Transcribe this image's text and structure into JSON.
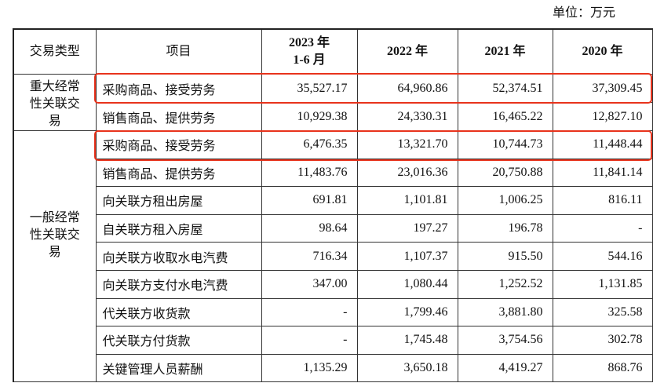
{
  "unit_label": "单位：万元",
  "headers": [
    "交易类型",
    "项目",
    "2023 年\n1-6 月",
    "2022 年",
    "2021 年",
    "2020 年"
  ],
  "header_2023_line1": "2023 年",
  "header_2023_line2": "1-6 月",
  "highlight_color": "#e8331c",
  "groups": [
    {
      "type": "重大经常性关联交易",
      "rows": [
        {
          "item": "采购商品、接受劳务",
          "values": [
            "35,527.17",
            "64,960.86",
            "52,374.51",
            "37,309.45"
          ],
          "highlighted": true
        },
        {
          "item": "销售商品、提供劳务",
          "values": [
            "10,929.38",
            "24,330.31",
            "16,465.22",
            "12,827.10"
          ],
          "highlighted": false
        }
      ]
    },
    {
      "type": "一般经常性关联交易",
      "rows": [
        {
          "item": "采购商品、接受劳务",
          "values": [
            "6,476.35",
            "13,321.70",
            "10,744.73",
            "11,448.44"
          ],
          "highlighted": true
        },
        {
          "item": "销售商品、提供劳务",
          "values": [
            "11,483.76",
            "23,016.36",
            "20,750.88",
            "11,841.14"
          ],
          "highlighted": false
        },
        {
          "item": "向关联方租出房屋",
          "values": [
            "691.81",
            "1,101.81",
            "1,006.25",
            "816.11"
          ],
          "highlighted": false
        },
        {
          "item": "自关联方租入房屋",
          "values": [
            "98.64",
            "197.27",
            "196.78",
            "-"
          ],
          "highlighted": false
        },
        {
          "item": "向关联方收取水电汽费",
          "values": [
            "716.34",
            "1,107.37",
            "915.50",
            "544.16"
          ],
          "highlighted": false
        },
        {
          "item": "向关联方支付水电汽费",
          "values": [
            "347.00",
            "1,080.44",
            "1,252.52",
            "1,131.85"
          ],
          "highlighted": false
        },
        {
          "item": "代关联方收货款",
          "values": [
            "-",
            "1,799.46",
            "3,881.80",
            "325.58"
          ],
          "highlighted": false
        },
        {
          "item": "代关联方付货款",
          "values": [
            "-",
            "1,745.48",
            "3,754.56",
            "302.78"
          ],
          "highlighted": false
        },
        {
          "item": "关键管理人员薪酬",
          "values": [
            "1,135.29",
            "3,650.18",
            "4,419.27",
            "868.76"
          ],
          "highlighted": false
        }
      ]
    }
  ]
}
